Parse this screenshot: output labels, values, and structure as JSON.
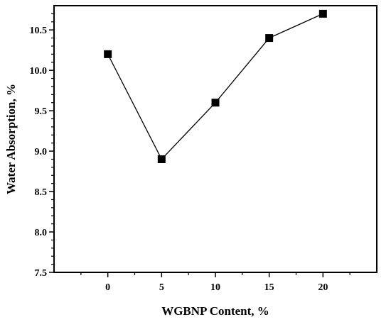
{
  "chart_data": {
    "type": "line",
    "title": "",
    "xlabel": "WGBNP Content, %",
    "ylabel": "Water Absorption, %",
    "x": [
      0,
      5,
      10,
      15,
      20
    ],
    "series": [
      {
        "values": [
          10.2,
          8.9,
          9.6,
          10.4,
          10.7
        ],
        "marker": "square",
        "color": "#000000"
      }
    ],
    "xlim": [
      -5,
      25
    ],
    "ylim": [
      7.5,
      10.8
    ],
    "xticks": [
      0,
      5,
      10,
      15,
      20
    ],
    "xtick_labels": [
      "0",
      "5",
      "10",
      "15",
      "20"
    ],
    "yticks": [
      7.5,
      8.0,
      8.5,
      9.0,
      9.5,
      10.0,
      10.5
    ],
    "ytick_labels": [
      "7.5",
      "8.0",
      "8.5",
      "9.0",
      "9.5",
      "10.0",
      "10.5"
    ],
    "grid": false,
    "legend": "none"
  }
}
